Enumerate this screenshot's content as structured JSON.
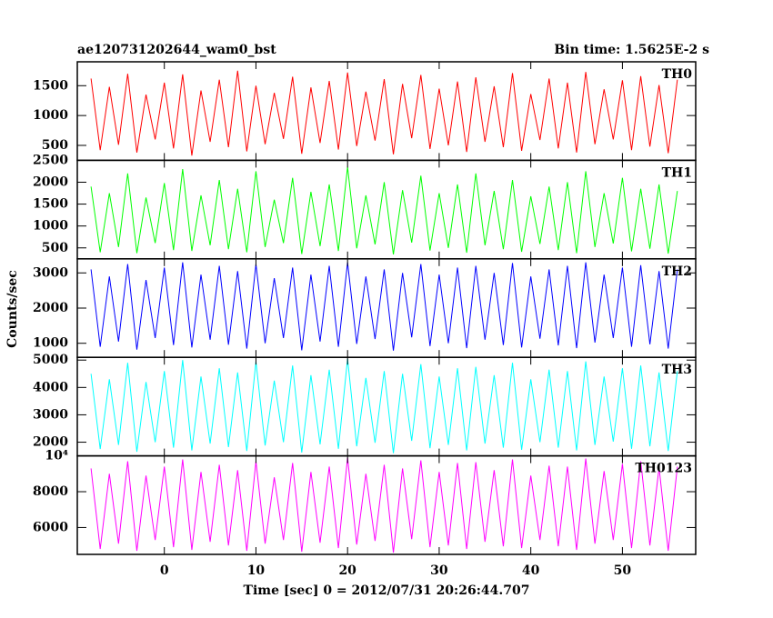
{
  "title": "ae120731202644_wam0_bst",
  "subtitle": "Bin time: 1.5625E-2 s",
  "y_label": "Counts/sec",
  "x_label": "Time [sec] 0 = 2012/07/31 20:26:44.707",
  "xlim": [
    -9.5,
    58
  ],
  "xticks": [
    0,
    10,
    20,
    30,
    40,
    50
  ],
  "chart_data": [
    {
      "type": "line",
      "ylim": [
        250,
        1900
      ],
      "yticks": [
        500,
        1000,
        1500
      ],
      "x": [
        -8,
        -7,
        -6,
        -5,
        -4,
        -3,
        -2,
        -1,
        0,
        1,
        2,
        3,
        4,
        5,
        6,
        7,
        8,
        9,
        10,
        11,
        12,
        13,
        14,
        15,
        16,
        17,
        18,
        19,
        20,
        21,
        22,
        23,
        24,
        25,
        26,
        27,
        28,
        29,
        30,
        31,
        32,
        33,
        34,
        35,
        36,
        37,
        38,
        39,
        40,
        41,
        42,
        43,
        44,
        45,
        46,
        47,
        48,
        49,
        50,
        51,
        52,
        53,
        54,
        55,
        56
      ],
      "series": [
        {
          "name": "TH0",
          "color": "#ff0000",
          "values": [
            1620,
            420,
            1480,
            510,
            1700,
            380,
            1350,
            600,
            1550,
            450,
            1690,
            330,
            1420,
            560,
            1600,
            470,
            1750,
            400,
            1500,
            520,
            1380,
            610,
            1650,
            360,
            1470,
            540,
            1580,
            430,
            1720,
            490,
            1400,
            580,
            1610,
            350,
            1530,
            620,
            1680,
            440,
            1450,
            500,
            1570,
            390,
            1640,
            560,
            1490,
            470,
            1710,
            410,
            1360,
            590,
            1620,
            450,
            1550,
            380,
            1730,
            520,
            1440,
            600,
            1590,
            420,
            1660,
            480,
            1510,
            370,
            1600
          ]
        }
      ]
    },
    {
      "type": "line",
      "ylim": [
        250,
        2500
      ],
      "yticks": [
        500,
        1000,
        1500,
        2000,
        2500
      ],
      "x": [
        -8,
        -7,
        -6,
        -5,
        -4,
        -3,
        -2,
        -1,
        0,
        1,
        2,
        3,
        4,
        5,
        6,
        7,
        8,
        9,
        10,
        11,
        12,
        13,
        14,
        15,
        16,
        17,
        18,
        19,
        20,
        21,
        22,
        23,
        24,
        25,
        26,
        27,
        28,
        29,
        30,
        31,
        32,
        33,
        34,
        35,
        36,
        37,
        38,
        39,
        40,
        41,
        42,
        43,
        44,
        45,
        46,
        47,
        48,
        49,
        50,
        51,
        52,
        53,
        54,
        55,
        56
      ],
      "series": [
        {
          "name": "TH1",
          "color": "#00ff00",
          "values": [
            1900,
            400,
            1750,
            520,
            2200,
            380,
            1650,
            610,
            1980,
            450,
            2300,
            430,
            1700,
            560,
            2050,
            470,
            1850,
            400,
            2250,
            520,
            1600,
            610,
            2100,
            360,
            1780,
            540,
            1950,
            430,
            2350,
            490,
            1700,
            580,
            2000,
            350,
            1820,
            620,
            2150,
            440,
            1750,
            500,
            1950,
            390,
            2200,
            560,
            1800,
            470,
            2050,
            410,
            1680,
            590,
            1900,
            450,
            2000,
            380,
            2250,
            520,
            1750,
            600,
            2100,
            420,
            1850,
            480,
            1950,
            370,
            1800
          ]
        }
      ]
    },
    {
      "type": "line",
      "ylim": [
        600,
        3400
      ],
      "yticks": [
        1000,
        2000,
        3000
      ],
      "x": [
        -8,
        -7,
        -6,
        -5,
        -4,
        -3,
        -2,
        -1,
        0,
        1,
        2,
        3,
        4,
        5,
        6,
        7,
        8,
        9,
        10,
        11,
        12,
        13,
        14,
        15,
        16,
        17,
        18,
        19,
        20,
        21,
        22,
        23,
        24,
        25,
        26,
        27,
        28,
        29,
        30,
        31,
        32,
        33,
        34,
        35,
        36,
        37,
        38,
        39,
        40,
        41,
        42,
        43,
        44,
        45,
        46,
        47,
        48,
        49,
        50,
        51,
        52,
        53,
        54,
        55,
        56
      ],
      "series": [
        {
          "name": "TH2",
          "color": "#0000ff",
          "values": [
            3100,
            900,
            2900,
            1050,
            3250,
            820,
            2800,
            1150,
            3150,
            950,
            3300,
            880,
            2950,
            1100,
            3200,
            960,
            3050,
            850,
            3250,
            1000,
            2850,
            1150,
            3150,
            800,
            2950,
            1050,
            3200,
            900,
            3300,
            980,
            2900,
            1120,
            3100,
            790,
            3000,
            1170,
            3250,
            920,
            2950,
            1000,
            3150,
            860,
            3200,
            1100,
            3000,
            950,
            3280,
            880,
            2900,
            1130,
            3100,
            940,
            3200,
            860,
            3300,
            1020,
            2950,
            1150,
            3150,
            900,
            3220,
            970,
            3050,
            850,
            3100
          ]
        }
      ]
    },
    {
      "type": "line",
      "ylim": [
        1500,
        5100
      ],
      "yticks": [
        2000,
        3000,
        4000,
        5000
      ],
      "x": [
        -8,
        -7,
        -6,
        -5,
        -4,
        -3,
        -2,
        -1,
        0,
        1,
        2,
        3,
        4,
        5,
        6,
        7,
        8,
        9,
        10,
        11,
        12,
        13,
        14,
        15,
        16,
        17,
        18,
        19,
        20,
        21,
        22,
        23,
        24,
        25,
        26,
        27,
        28,
        29,
        30,
        31,
        32,
        33,
        34,
        35,
        36,
        37,
        38,
        39,
        40,
        41,
        42,
        43,
        44,
        45,
        46,
        47,
        48,
        49,
        50,
        51,
        52,
        53,
        54,
        55,
        56
      ],
      "series": [
        {
          "name": "TH3",
          "color": "#00ffff",
          "values": [
            4500,
            1750,
            4300,
            1900,
            4900,
            1650,
            4200,
            2000,
            4600,
            1800,
            5000,
            1700,
            4400,
            1950,
            4700,
            1820,
            4550,
            1680,
            4950,
            1880,
            4250,
            2000,
            4800,
            1620,
            4450,
            1920,
            4650,
            1760,
            5050,
            1850,
            4350,
            1980,
            4600,
            1600,
            4500,
            2050,
            4850,
            1780,
            4400,
            1900,
            4700,
            1700,
            4750,
            1950,
            4450,
            1800,
            4900,
            1720,
            4300,
            2000,
            4650,
            1800,
            4600,
            1700,
            4950,
            1900,
            4400,
            2020,
            4700,
            1760,
            4800,
            1850,
            4550,
            1680,
            4600
          ]
        }
      ]
    },
    {
      "type": "line",
      "ylim": [
        4500,
        10000
      ],
      "yticks": [
        6000,
        8000,
        {
          "value": 10000,
          "label": "10⁴"
        }
      ],
      "x": [
        -8,
        -7,
        -6,
        -5,
        -4,
        -3,
        -2,
        -1,
        0,
        1,
        2,
        3,
        4,
        5,
        6,
        7,
        8,
        9,
        10,
        11,
        12,
        13,
        14,
        15,
        16,
        17,
        18,
        19,
        20,
        21,
        22,
        23,
        24,
        25,
        26,
        27,
        28,
        29,
        30,
        31,
        32,
        33,
        34,
        35,
        36,
        37,
        38,
        39,
        40,
        41,
        42,
        43,
        44,
        45,
        46,
        47,
        48,
        49,
        50,
        51,
        52,
        53,
        54,
        55,
        56
      ],
      "series": [
        {
          "name": "TH0123",
          "color": "#ff00ff",
          "values": [
            9300,
            4800,
            9000,
            5100,
            9700,
            4700,
            8900,
            5300,
            9400,
            4900,
            9800,
            4750,
            9100,
            5200,
            9500,
            5000,
            9200,
            4700,
            9700,
            5100,
            8800,
            5300,
            9600,
            4650,
            9100,
            5150,
            9400,
            4850,
            9900,
            5050,
            9000,
            5250,
            9500,
            4600,
            9300,
            5350,
            9750,
            4900,
            9100,
            5000,
            9600,
            4800,
            9650,
            5200,
            9200,
            4950,
            9800,
            4850,
            8900,
            5300,
            9450,
            4950,
            9400,
            4750,
            9850,
            5100,
            9150,
            5300,
            9550,
            4850,
            9700,
            5000,
            9350,
            4700,
            9400
          ]
        }
      ]
    }
  ]
}
